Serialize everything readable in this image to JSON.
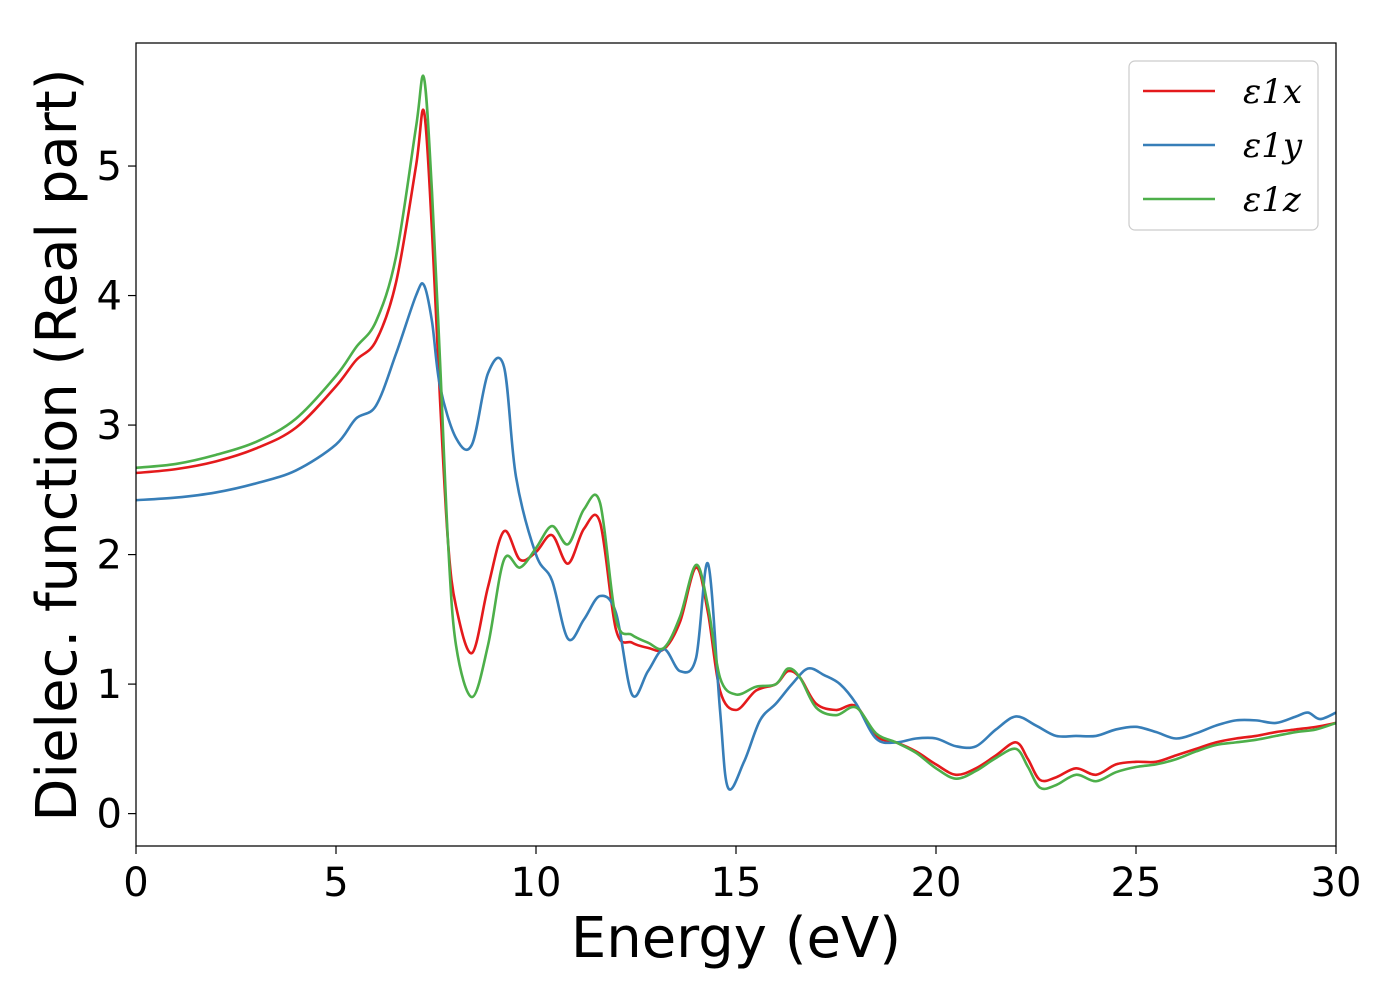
{
  "chart_data": {
    "type": "line",
    "title": "",
    "xlabel": "Energy (eV)",
    "ylabel": "Dielec. function (Real part)",
    "xlim": [
      0,
      30
    ],
    "ylim": [
      -0.25,
      5.95
    ],
    "xticks": [
      0,
      5,
      10,
      15,
      20,
      25,
      30
    ],
    "yticks": [
      0,
      1,
      2,
      3,
      4,
      5
    ],
    "grid": false,
    "legend_position": "top-right",
    "series": [
      {
        "name": "ε1x",
        "color": "#e41a1c",
        "x": [
          0,
          1,
          2,
          3,
          4,
          5,
          5.5,
          6,
          6.5,
          7,
          7.2,
          7.4,
          7.6,
          7.8,
          8,
          8.4,
          8.8,
          9.2,
          9.6,
          10,
          10.4,
          10.8,
          11.2,
          11.6,
          12,
          12.4,
          12.8,
          13.2,
          13.6,
          14,
          14.3,
          14.6,
          15,
          15.5,
          16,
          16.3,
          16.6,
          17,
          17.5,
          18,
          18.5,
          19,
          19.5,
          20,
          20.5,
          21,
          21.5,
          22,
          22.3,
          22.6,
          23,
          23.5,
          24,
          24.5,
          25,
          25.5,
          26,
          26.5,
          27,
          27.5,
          28,
          28.5,
          29,
          29.5,
          30
        ],
        "values": [
          2.63,
          2.66,
          2.72,
          2.82,
          2.98,
          3.3,
          3.5,
          3.65,
          4.1,
          5.0,
          5.42,
          4.5,
          3.2,
          2.1,
          1.6,
          1.24,
          1.75,
          2.18,
          1.96,
          2.02,
          2.15,
          1.93,
          2.2,
          2.25,
          1.42,
          1.32,
          1.28,
          1.27,
          1.48,
          1.9,
          1.55,
          0.95,
          0.8,
          0.95,
          1.0,
          1.1,
          1.05,
          0.85,
          0.8,
          0.83,
          0.6,
          0.55,
          0.48,
          0.38,
          0.3,
          0.35,
          0.45,
          0.55,
          0.42,
          0.26,
          0.28,
          0.35,
          0.3,
          0.38,
          0.4,
          0.4,
          0.45,
          0.5,
          0.55,
          0.58,
          0.6,
          0.63,
          0.65,
          0.67,
          0.7
        ]
      },
      {
        "name": "ε1y",
        "color": "#377eb8",
        "x": [
          0,
          1,
          2,
          3,
          4,
          5,
          5.5,
          6,
          6.5,
          7,
          7.2,
          7.4,
          7.6,
          8,
          8.4,
          8.8,
          9.2,
          9.5,
          10,
          10.4,
          10.8,
          11.2,
          11.6,
          12,
          12.4,
          12.8,
          13.2,
          13.6,
          14,
          14.3,
          14.6,
          14.8,
          15.2,
          15.6,
          16,
          16.4,
          16.8,
          17.2,
          17.6,
          18,
          18.5,
          19,
          19.5,
          20,
          20.5,
          21,
          21.5,
          22,
          22.5,
          23,
          23.5,
          24,
          24.5,
          25,
          25.5,
          26,
          26.5,
          27,
          27.5,
          28,
          28.5,
          29,
          29.3,
          29.6,
          30
        ],
        "values": [
          2.42,
          2.44,
          2.48,
          2.55,
          2.65,
          2.85,
          3.05,
          3.15,
          3.55,
          4.0,
          4.08,
          3.8,
          3.3,
          2.9,
          2.85,
          3.4,
          3.45,
          2.6,
          2.0,
          1.8,
          1.35,
          1.5,
          1.68,
          1.55,
          0.92,
          1.1,
          1.27,
          1.1,
          1.2,
          1.93,
          0.8,
          0.2,
          0.4,
          0.72,
          0.85,
          1.0,
          1.12,
          1.07,
          1.0,
          0.85,
          0.58,
          0.55,
          0.58,
          0.58,
          0.52,
          0.52,
          0.65,
          0.75,
          0.68,
          0.6,
          0.6,
          0.6,
          0.65,
          0.67,
          0.63,
          0.58,
          0.62,
          0.68,
          0.72,
          0.72,
          0.7,
          0.75,
          0.78,
          0.73,
          0.78
        ]
      },
      {
        "name": "ε1z",
        "color": "#4daf4a",
        "x": [
          0,
          1,
          2,
          3,
          4,
          5,
          5.5,
          6,
          6.5,
          7,
          7.2,
          7.4,
          7.6,
          7.8,
          8,
          8.4,
          8.8,
          9.2,
          9.6,
          10,
          10.4,
          10.8,
          11.2,
          11.6,
          12,
          12.4,
          12.8,
          13.2,
          13.6,
          14,
          14.3,
          14.6,
          15,
          15.5,
          16,
          16.3,
          16.6,
          17,
          17.5,
          18,
          18.5,
          19,
          19.5,
          20,
          20.5,
          21,
          21.5,
          22,
          22.3,
          22.6,
          23,
          23.5,
          24,
          24.5,
          25,
          25.5,
          26,
          26.5,
          27,
          27.5,
          28,
          28.5,
          29,
          29.5,
          30
        ],
        "values": [
          2.67,
          2.7,
          2.77,
          2.87,
          3.05,
          3.38,
          3.6,
          3.8,
          4.3,
          5.3,
          5.68,
          4.8,
          3.5,
          2.1,
          1.3,
          0.9,
          1.3,
          1.96,
          1.9,
          2.05,
          2.22,
          2.08,
          2.35,
          2.4,
          1.5,
          1.38,
          1.32,
          1.28,
          1.52,
          1.92,
          1.6,
          1.05,
          0.92,
          0.98,
          1.0,
          1.12,
          1.05,
          0.82,
          0.76,
          0.82,
          0.62,
          0.55,
          0.47,
          0.35,
          0.27,
          0.33,
          0.43,
          0.5,
          0.36,
          0.2,
          0.22,
          0.3,
          0.25,
          0.32,
          0.36,
          0.38,
          0.42,
          0.48,
          0.53,
          0.55,
          0.57,
          0.6,
          0.63,
          0.65,
          0.7
        ]
      }
    ]
  }
}
